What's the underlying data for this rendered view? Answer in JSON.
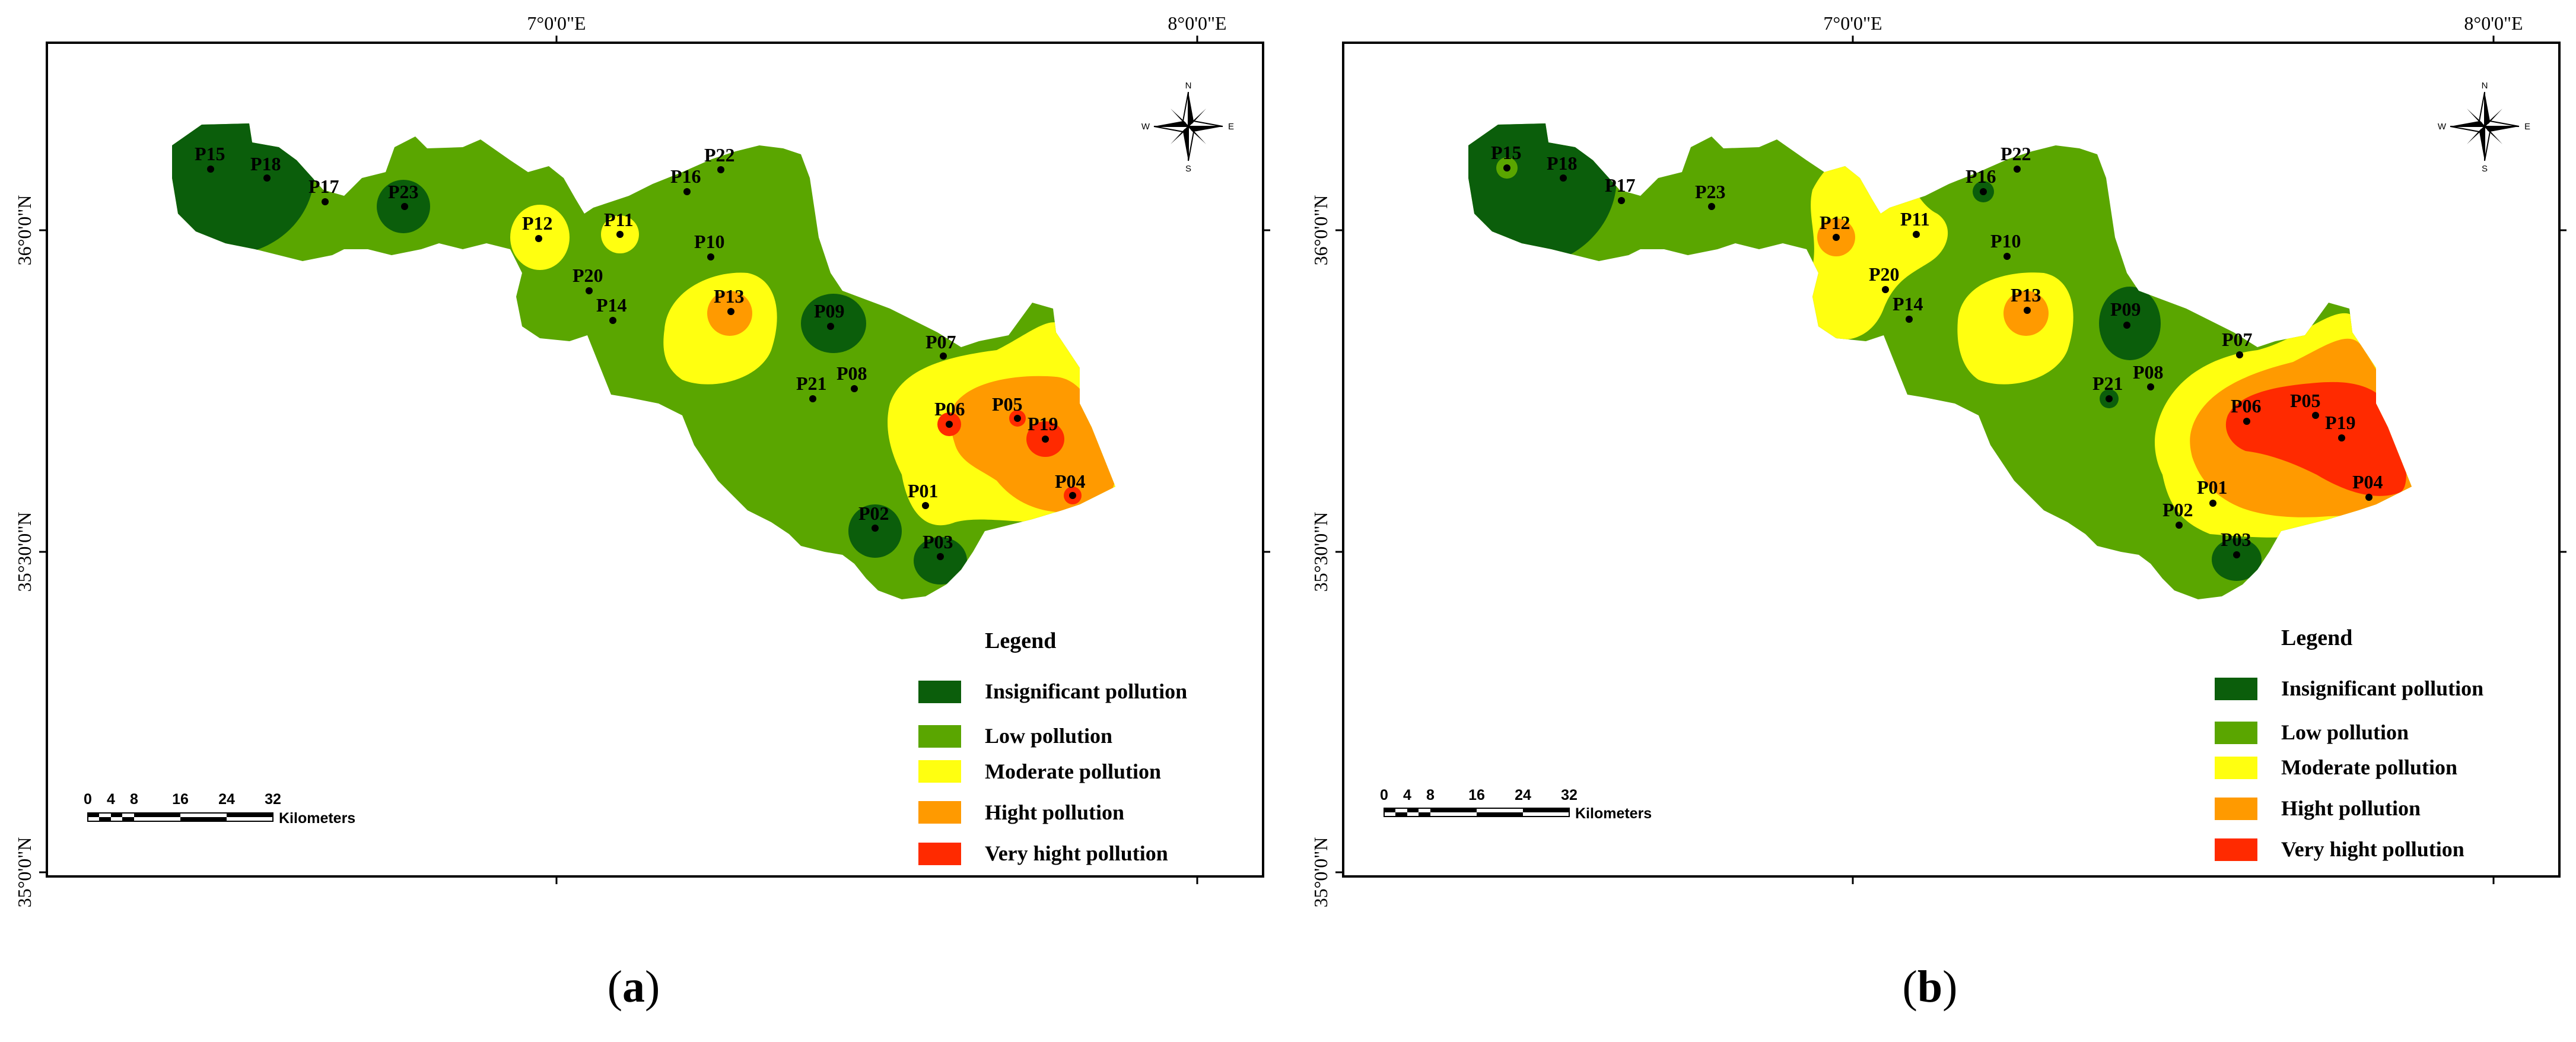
{
  "colors": {
    "insignificant": "#0b5e0b",
    "low": "#5aa600",
    "moderate": "#ffff10",
    "high": "#ff9a00",
    "very_high": "#ff2a00"
  },
  "coords": {
    "lon_7": "7°0'0\"E",
    "lon_8": "8°0'0\"E",
    "lat_36": "36°0'0\"N",
    "lat_3530": "35°30'0\"N",
    "lat_35": "35°0'0\"N"
  },
  "compass": {
    "n": "N",
    "s": "S",
    "e": "E",
    "w": "W"
  },
  "scale": {
    "ticks": [
      "0",
      "4",
      "8",
      "16",
      "24",
      "32"
    ],
    "unit": "Kilometers"
  },
  "legend": {
    "title": "Legend",
    "items": [
      {
        "label": "Insignificant pollution",
        "class": "insignificant"
      },
      {
        "label": "Low pollution",
        "class": "low"
      },
      {
        "label": "Moderate pollution",
        "class": "moderate"
      },
      {
        "label": "Hight pollution",
        "class": "high"
      },
      {
        "label": "Very hight pollution",
        "class": "very_high"
      }
    ]
  },
  "points": [
    "P01",
    "P02",
    "P03",
    "P04",
    "P05",
    "P06",
    "P07",
    "P08",
    "P09",
    "P10",
    "P11",
    "P12",
    "P13",
    "P14",
    "P15",
    "P16",
    "P17",
    "P18",
    "P19",
    "P20",
    "P21",
    "P22",
    "P23"
  ],
  "panels": [
    {
      "caption_letter": "a",
      "zones": [
        {
          "class": "insignificant",
          "near": [
            "P15",
            "P18"
          ]
        },
        {
          "class": "insignificant",
          "near": [
            "P23"
          ]
        },
        {
          "class": "insignificant",
          "near": [
            "P09"
          ]
        },
        {
          "class": "insignificant",
          "near": [
            "P02"
          ]
        },
        {
          "class": "insignificant",
          "near": [
            "P03"
          ]
        },
        {
          "class": "moderate",
          "near": [
            "P12"
          ]
        },
        {
          "class": "moderate",
          "near": [
            "P11"
          ]
        },
        {
          "class": "moderate",
          "near": [
            "P13"
          ]
        },
        {
          "class": "high",
          "near": [
            "P13"
          ]
        },
        {
          "class": "moderate",
          "near": [
            "P06",
            "P05",
            "P19",
            "P04",
            "P01"
          ]
        },
        {
          "class": "high",
          "near": [
            "P06",
            "P05",
            "P19",
            "P04"
          ]
        },
        {
          "class": "very_high",
          "near": [
            "P06"
          ]
        },
        {
          "class": "very_high",
          "near": [
            "P05"
          ]
        },
        {
          "class": "very_high",
          "near": [
            "P19"
          ]
        },
        {
          "class": "very_high",
          "near": [
            "P04"
          ]
        }
      ]
    },
    {
      "caption_letter": "b",
      "zones": [
        {
          "class": "insignificant",
          "near": [
            "P15",
            "P18"
          ]
        },
        {
          "class": "low",
          "near": [
            "P15"
          ]
        },
        {
          "class": "insignificant",
          "near": [
            "P16"
          ]
        },
        {
          "class": "insignificant",
          "near": [
            "P09"
          ]
        },
        {
          "class": "insignificant",
          "near": [
            "P21"
          ]
        },
        {
          "class": "insignificant",
          "near": [
            "P03"
          ]
        },
        {
          "class": "moderate",
          "near": [
            "P12",
            "P11",
            "P20",
            "P14"
          ]
        },
        {
          "class": "high",
          "near": [
            "P12"
          ]
        },
        {
          "class": "moderate",
          "near": [
            "P13"
          ]
        },
        {
          "class": "high",
          "near": [
            "P13"
          ]
        },
        {
          "class": "moderate",
          "near": [
            "P06",
            "P05",
            "P19",
            "P04",
            "P01"
          ]
        },
        {
          "class": "high",
          "near": [
            "P06",
            "P05",
            "P19",
            "P04"
          ]
        },
        {
          "class": "very_high",
          "near": [
            "P06",
            "P05",
            "P19",
            "P04"
          ]
        }
      ]
    }
  ]
}
